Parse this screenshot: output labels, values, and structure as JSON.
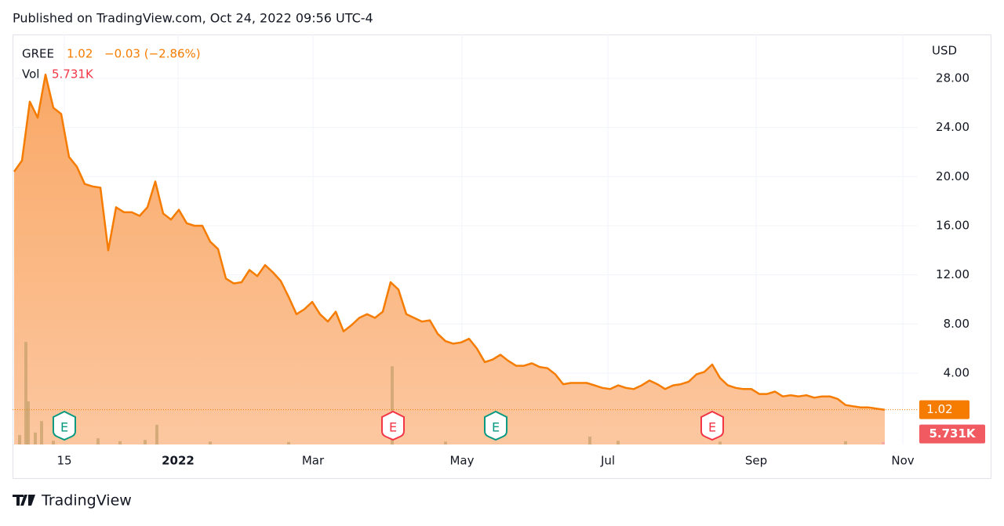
{
  "chart_data": {
    "type": "area",
    "published": "Published on TradingView.com, Oct 24, 2022 09:56 UTC-4",
    "brand": "TradingView",
    "symbol": "GREE",
    "change": "−0.03 (−2.86%)",
    "volume_label": "Vol",
    "currency": "USD",
    "xlim": [
      -0.2,
      115.2
    ],
    "xticks": [
      {
        "value": 6.4,
        "label": "15"
      },
      {
        "value": 20.9,
        "label": "2022"
      },
      {
        "value": 38.1,
        "label": "Mar"
      },
      {
        "value": 57.1,
        "label": "May"
      },
      {
        "value": 75.7,
        "label": "Jul"
      },
      {
        "value": 94.6,
        "label": "Sep"
      },
      {
        "value": 113.3,
        "label": "Nov"
      }
    ],
    "ylim": [
      -1.81,
      31.57
    ],
    "yticks": [
      {
        "value": 4,
        "label": "4.00"
      },
      {
        "value": 8,
        "label": "8.00"
      },
      {
        "value": 12,
        "label": "12.00"
      },
      {
        "value": 16,
        "label": "16.00"
      },
      {
        "value": 20,
        "label": "20.00"
      },
      {
        "value": 24,
        "label": "24.00"
      },
      {
        "value": 28,
        "label": "28.00"
      }
    ],
    "y2lim": [
      0,
      1000000
    ],
    "grid": true,
    "events": [
      {
        "x": 6.4,
        "label": "E",
        "color": "#089981"
      },
      {
        "x": 48.3,
        "label": "E",
        "color": "#f23645"
      },
      {
        "x": 61.4,
        "label": "E",
        "color": "#089981"
      },
      {
        "x": 89.0,
        "label": "E",
        "color": "#f23645"
      }
    ],
    "series": [
      {
        "name": "GREE",
        "color": "#f57c00",
        "x": [
          0,
          1,
          2,
          3,
          4,
          5,
          6,
          7,
          8,
          9,
          10,
          11,
          12,
          13,
          14,
          15,
          16,
          17,
          18,
          19,
          20,
          21,
          22,
          23,
          24,
          25,
          26,
          27,
          28,
          29,
          30,
          31,
          32,
          33,
          34,
          35,
          36,
          37,
          38,
          39,
          40,
          41,
          42,
          43,
          44,
          45,
          46,
          47,
          48,
          49,
          50,
          51,
          52,
          53,
          54,
          55,
          56,
          57,
          58,
          59,
          60,
          61,
          62,
          63,
          64,
          65,
          66,
          67,
          68,
          69,
          70,
          71,
          72,
          73,
          74,
          75,
          76,
          77,
          78,
          79,
          80,
          81,
          82,
          83,
          84,
          85,
          86,
          87,
          88,
          89,
          90,
          91,
          92,
          93,
          94,
          95,
          96,
          97,
          98,
          99,
          100,
          101,
          102,
          103,
          104,
          105,
          106,
          107,
          108,
          109,
          110,
          111
        ],
        "values": [
          20.4,
          21.3,
          26.1,
          24.8,
          28.3,
          25.6,
          25.1,
          21.6,
          20.8,
          19.4,
          19.2,
          19.1,
          14.0,
          17.5,
          17.1,
          17.1,
          16.8,
          17.5,
          19.6,
          17.0,
          16.5,
          17.3,
          16.2,
          16.0,
          16.0,
          14.7,
          14.1,
          11.7,
          11.3,
          11.4,
          12.4,
          11.9,
          12.8,
          12.2,
          11.5,
          10.2,
          8.8,
          9.2,
          9.8,
          8.8,
          8.2,
          9.0,
          7.4,
          7.9,
          8.5,
          8.8,
          8.5,
          9.0,
          11.4,
          10.8,
          8.8,
          8.5,
          8.2,
          8.3,
          7.2,
          6.6,
          6.4,
          6.5,
          6.8,
          6.0,
          4.9,
          5.1,
          5.5,
          5.0,
          4.6,
          4.6,
          4.8,
          4.5,
          4.4,
          3.9,
          3.1,
          3.2,
          3.2,
          3.2,
          3.0,
          2.8,
          2.7,
          3.0,
          2.8,
          2.7,
          3.0,
          3.4,
          3.1,
          2.7,
          3.0,
          3.1,
          3.3,
          3.9,
          4.1,
          4.7,
          3.6,
          3.0,
          2.8,
          2.7,
          2.7,
          2.3,
          2.3,
          2.5,
          2.1,
          2.2,
          2.1,
          2.2,
          2.0,
          2.1,
          2.1,
          1.9,
          1.4,
          1.3,
          1.2,
          1.2,
          1.1,
          1.02
        ]
      },
      {
        "name": "Vol",
        "color": "#c8a26e",
        "axis": "y2",
        "x": [
          0.7,
          1.5,
          1.8,
          2.7,
          3.5,
          5.0,
          10.7,
          13.5,
          16.7,
          18.2,
          25.0,
          35.0,
          48.2,
          55.0,
          73.4,
          77.0,
          90.0,
          106.0,
          110.8
        ],
        "values": [
          23000,
          250000,
          105000,
          29000,
          57000,
          9000,
          15000,
          8000,
          11000,
          48000,
          7000,
          6000,
          191000,
          7000,
          19000,
          9000,
          7000,
          8000,
          5731
        ],
        "value_labels": [
          "",
          "",
          "",
          "",
          "",
          "",
          "",
          "",
          "",
          "",
          "",
          "",
          "",
          "",
          "",
          "",
          "",
          "",
          "5.731K"
        ]
      }
    ]
  }
}
